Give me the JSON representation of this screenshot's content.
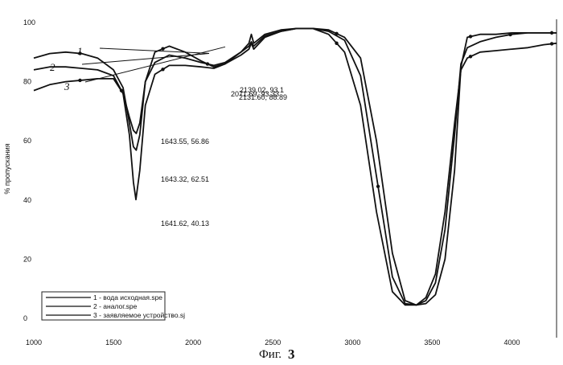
{
  "chart_data": {
    "type": "line",
    "title": "",
    "xlabel": "",
    "ylabel": "% пропускания",
    "xlim": [
      1000,
      4280
    ],
    "ylim": [
      0,
      100
    ],
    "x_ticks": [
      1000,
      1500,
      2000,
      2500,
      3000,
      3500,
      4000
    ],
    "y_ticks": [
      0,
      20,
      40,
      60,
      80,
      100
    ],
    "grid": false,
    "legend_position": "bottom-left",
    "caption_prefix": "Фиг.",
    "caption_number": "3",
    "series": [
      {
        "name": "1 - вода исходная.spe",
        "marker": "1",
        "x": [
          1000,
          1100,
          1200,
          1300,
          1400,
          1500,
          1560,
          1600,
          1625,
          1643,
          1665,
          1700,
          1760,
          1850,
          1950,
          2050,
          2130,
          2200,
          2300,
          2350,
          2365,
          2380,
          2450,
          2550,
          2650,
          2750,
          2850,
          2950,
          3050,
          3150,
          3250,
          3330,
          3400,
          3460,
          3520,
          3580,
          3640,
          3680,
          3720,
          3800,
          3900,
          4000,
          4100,
          4200,
          4280
        ],
        "y": [
          88,
          89.5,
          90,
          89.5,
          88,
          84,
          78,
          66,
          58,
          56.86,
          62,
          80,
          90,
          92,
          90,
          87,
          85,
          86,
          90,
          93,
          96,
          93,
          96,
          97.5,
          98,
          98,
          97.5,
          95,
          88,
          60,
          22,
          6,
          4.5,
          5,
          8,
          20,
          50,
          85,
          95,
          96,
          96,
          96.5,
          96.5,
          96.5,
          96.5
        ]
      },
      {
        "name": "2 - аналог.spe",
        "marker": "2",
        "x": [
          1000,
          1100,
          1200,
          1300,
          1400,
          1500,
          1560,
          1600,
          1625,
          1643,
          1665,
          1700,
          1760,
          1850,
          1950,
          2050,
          2130,
          2200,
          2300,
          2350,
          2365,
          2380,
          2450,
          2550,
          2650,
          2750,
          2850,
          2950,
          3050,
          3150,
          3250,
          3330,
          3400,
          3460,
          3520,
          3580,
          3640,
          3680,
          3720,
          3800,
          3900,
          4000,
          4100,
          4200,
          4280
        ],
        "y": [
          84,
          85,
          85,
          84.5,
          84,
          82,
          76,
          68,
          63.5,
          62.51,
          66,
          80,
          86.5,
          89,
          88,
          86.5,
          85.5,
          86.5,
          90,
          92,
          93.5,
          92,
          95.5,
          97,
          98,
          98,
          97,
          94,
          82,
          48,
          14,
          5,
          4.5,
          6,
          12,
          30,
          62,
          86,
          91.5,
          93.5,
          95,
          96,
          96.5,
          96.5,
          96.5
        ]
      },
      {
        "name": "3 - заявляемое устройство.sj",
        "marker": "3",
        "x": [
          1000,
          1100,
          1200,
          1300,
          1400,
          1500,
          1560,
          1600,
          1625,
          1641,
          1665,
          1700,
          1760,
          1850,
          1950,
          2050,
          2130,
          2200,
          2300,
          2350,
          2365,
          2380,
          2450,
          2550,
          2650,
          2750,
          2850,
          2950,
          3050,
          3150,
          3250,
          3330,
          3400,
          3460,
          3520,
          3580,
          3640,
          3680,
          3720,
          3800,
          3900,
          4000,
          4100,
          4200,
          4280
        ],
        "y": [
          77,
          79,
          80,
          80.5,
          81,
          81,
          76,
          62,
          46,
          40.13,
          50,
          72,
          82.5,
          85.5,
          85.5,
          85,
          84.5,
          86,
          89,
          91,
          93,
          91,
          95,
          97,
          98,
          98,
          96,
          90,
          72,
          36,
          9,
          4.5,
          4.5,
          7,
          15,
          36,
          66,
          84,
          88,
          90,
          90.5,
          91,
          91.5,
          92.5,
          93
        ]
      }
    ],
    "annotations": [
      {
        "text": "1643.55, 56.86",
        "x": 1643.55,
        "y": 56.86
      },
      {
        "text": "1643.32, 62.51",
        "x": 1643.32,
        "y": 62.51
      },
      {
        "text": "1641.62, 40.13",
        "x": 1641.62,
        "y": 40.13
      },
      {
        "text": "2139.02, 93.1",
        "x": 2139.02,
        "y": 93.1
      },
      {
        "text": "2071.69, 93.33",
        "x": 2071.69,
        "y": 93.33
      },
      {
        "text": "2131.60, 88.89",
        "x": 2131.6,
        "y": 88.89
      }
    ]
  }
}
